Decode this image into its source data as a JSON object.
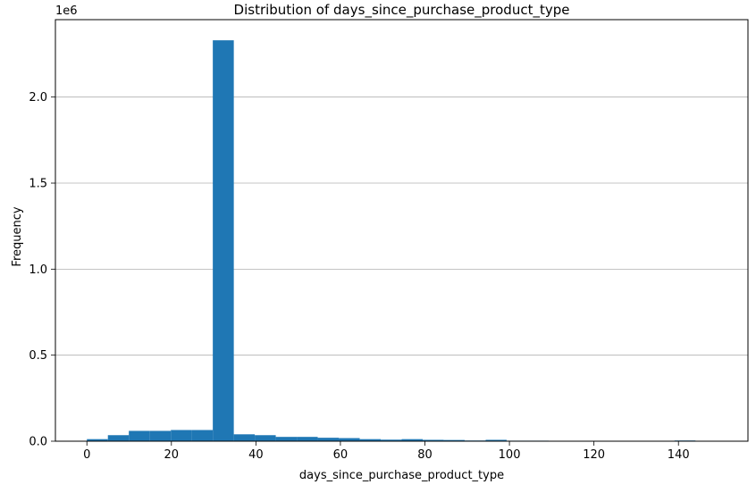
{
  "chart_data": {
    "type": "bar",
    "title": "Distribution of days_since_purchase_product_type",
    "xlabel": "days_since_purchase_product_type",
    "ylabel": "Frequency",
    "y_offset_label": "1e6",
    "xlim": [
      -7.45,
      156.45
    ],
    "ylim": [
      0,
      2.45
    ],
    "y_unit_multiplier": 1000000,
    "grid": "y",
    "xticks": [
      {
        "value": 0,
        "label": "0"
      },
      {
        "value": 20,
        "label": "20"
      },
      {
        "value": 40,
        "label": "40"
      },
      {
        "value": 60,
        "label": "60"
      },
      {
        "value": 80,
        "label": "80"
      },
      {
        "value": 100,
        "label": "100"
      },
      {
        "value": 120,
        "label": "120"
      },
      {
        "value": 140,
        "label": "140"
      }
    ],
    "yticks": [
      {
        "value": 0.0,
        "label": "0.0"
      },
      {
        "value": 0.5,
        "label": "0.5"
      },
      {
        "value": 1.0,
        "label": "1.0"
      },
      {
        "value": 1.5,
        "label": "1.5"
      },
      {
        "value": 2.0,
        "label": "2.0"
      }
    ],
    "bin_edges": [
      0,
      4.97,
      9.93,
      14.9,
      19.87,
      24.83,
      29.8,
      34.77,
      39.73,
      44.7,
      49.67,
      54.63,
      59.6,
      64.57,
      69.53,
      74.5,
      79.47,
      84.43,
      89.4,
      94.37,
      99.33,
      104.3,
      109.27,
      114.23,
      119.2,
      124.17,
      129.13,
      134.1,
      139.07,
      144.03,
      149
    ],
    "values": [
      0.012,
      0.035,
      0.06,
      0.06,
      0.065,
      0.065,
      2.33,
      0.04,
      0.035,
      0.025,
      0.025,
      0.02,
      0.018,
      0.012,
      0.009,
      0.012,
      0.008,
      0.007,
      0.004,
      0.008,
      0.003,
      0.003,
      0.002,
      0.002,
      0.002,
      0.002,
      0.002,
      0.0005,
      0.004,
      0.0005
    ],
    "bar_color": "#1f77b4",
    "grid_color": "#b0b0b0"
  }
}
